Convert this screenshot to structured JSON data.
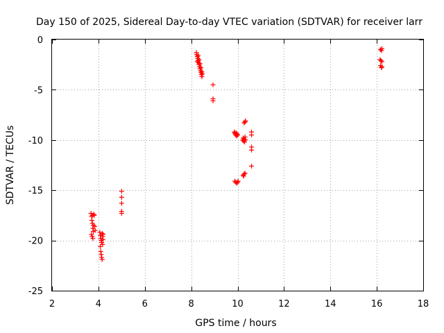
{
  "chart_data": {
    "type": "scatter",
    "title": "Day 150 of 2025, Sidereal Day-to-day VTEC variation (SDTVAR) for receiver larr",
    "xlabel": "GPS time / hours",
    "ylabel": "SDTVAR / TECUs",
    "xlim": [
      2,
      18
    ],
    "ylim": [
      -25,
      0
    ],
    "xticks": [
      2,
      4,
      6,
      8,
      10,
      12,
      14,
      16,
      18
    ],
    "yticks": [
      0,
      -5,
      -10,
      -15,
      -20,
      -25
    ],
    "grid": true,
    "marker": "+",
    "series": [
      {
        "name": "SDTVAR",
        "color": "#ff0000",
        "points": [
          [
            3.68,
            -17.3
          ],
          [
            3.7,
            -17.6
          ],
          [
            3.72,
            -18.0
          ],
          [
            3.74,
            -18.3
          ],
          [
            3.76,
            -18.8
          ],
          [
            3.78,
            -19.1
          ],
          [
            3.7,
            -19.4
          ],
          [
            3.73,
            -19.6
          ],
          [
            3.76,
            -19.8
          ],
          [
            3.8,
            -17.4
          ],
          [
            3.82,
            -17.5
          ],
          [
            3.84,
            -18.6
          ],
          [
            3.86,
            -19.0
          ],
          [
            3.75,
            -17.5
          ],
          [
            3.78,
            -18.5
          ],
          [
            4.06,
            -19.2
          ],
          [
            4.08,
            -19.5
          ],
          [
            4.1,
            -19.8
          ],
          [
            4.12,
            -20.0
          ],
          [
            4.14,
            -20.2
          ],
          [
            4.16,
            -19.3
          ],
          [
            4.18,
            -19.6
          ],
          [
            4.2,
            -19.4
          ],
          [
            4.1,
            -21.1
          ],
          [
            4.12,
            -21.4
          ],
          [
            4.14,
            -21.7
          ],
          [
            4.16,
            -21.9
          ],
          [
            4.2,
            -19.9
          ],
          [
            4.08,
            -20.6
          ],
          [
            4.18,
            -20.4
          ],
          [
            5.0,
            -15.1
          ],
          [
            5.0,
            -15.7
          ],
          [
            5.0,
            -16.3
          ],
          [
            5.0,
            -17.1
          ],
          [
            5.0,
            -17.3
          ],
          [
            8.22,
            -1.3
          ],
          [
            8.24,
            -1.5
          ],
          [
            8.26,
            -1.7
          ],
          [
            8.28,
            -1.9
          ],
          [
            8.3,
            -2.1
          ],
          [
            8.32,
            -2.3
          ],
          [
            8.34,
            -2.5
          ],
          [
            8.36,
            -2.7
          ],
          [
            8.38,
            -2.9
          ],
          [
            8.4,
            -3.1
          ],
          [
            8.42,
            -3.3
          ],
          [
            8.44,
            -3.5
          ],
          [
            8.46,
            -3.7
          ],
          [
            8.3,
            -1.6
          ],
          [
            8.34,
            -2.0
          ],
          [
            8.38,
            -2.4
          ],
          [
            8.42,
            -2.8
          ],
          [
            8.46,
            -3.2
          ],
          [
            8.48,
            -3.4
          ],
          [
            8.26,
            -2.2
          ],
          [
            8.94,
            -4.5
          ],
          [
            8.94,
            -5.9
          ],
          [
            8.94,
            -6.1
          ],
          [
            9.86,
            -9.2
          ],
          [
            9.88,
            -9.3
          ],
          [
            9.9,
            -9.4
          ],
          [
            9.92,
            -9.5
          ],
          [
            9.94,
            -9.3
          ],
          [
            9.96,
            -9.6
          ],
          [
            9.98,
            -9.4
          ],
          [
            10.0,
            -9.5
          ],
          [
            9.88,
            -14.1
          ],
          [
            9.92,
            -14.2
          ],
          [
            9.96,
            -14.3
          ],
          [
            10.0,
            -14.2
          ],
          [
            10.02,
            -14.1
          ],
          [
            10.22,
            -10.0
          ],
          [
            10.24,
            -9.8
          ],
          [
            10.26,
            -10.1
          ],
          [
            10.28,
            -9.9
          ],
          [
            10.3,
            -10.2
          ],
          [
            10.32,
            -9.7
          ],
          [
            10.34,
            -10.0
          ],
          [
            10.28,
            -8.3
          ],
          [
            10.32,
            -8.2
          ],
          [
            10.34,
            -8.1
          ],
          [
            10.24,
            -13.5
          ],
          [
            10.28,
            -13.4
          ],
          [
            10.32,
            -13.3
          ],
          [
            10.26,
            -13.6
          ],
          [
            10.6,
            -9.2
          ],
          [
            10.6,
            -9.5
          ],
          [
            10.6,
            -10.7
          ],
          [
            10.6,
            -11.0
          ],
          [
            10.6,
            -12.6
          ],
          [
            16.16,
            -1.0
          ],
          [
            16.2,
            -1.1
          ],
          [
            16.22,
            -0.9
          ],
          [
            16.14,
            -2.0
          ],
          [
            16.18,
            -2.1
          ],
          [
            16.22,
            -2.2
          ],
          [
            16.16,
            -2.6
          ],
          [
            16.2,
            -2.8
          ],
          [
            16.22,
            -2.7
          ]
        ]
      }
    ]
  }
}
